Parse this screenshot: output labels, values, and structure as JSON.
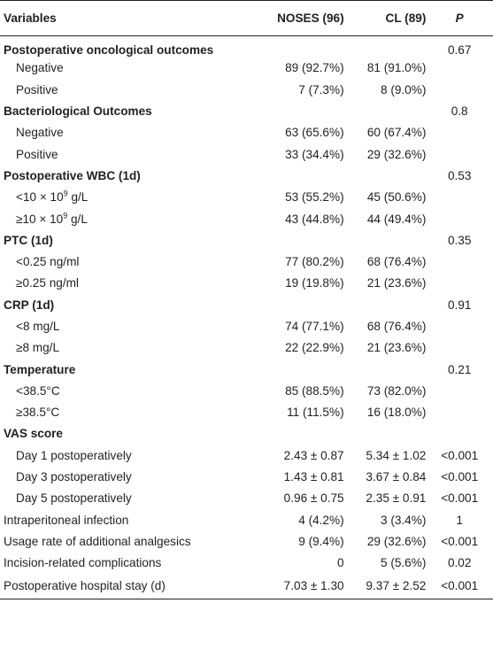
{
  "header": {
    "variables": "Variables",
    "noses": "NOSES (96)",
    "cl": "CL (89)",
    "p": "P"
  },
  "rows": [
    {
      "label": "Postoperative oncological outcomes",
      "noses": "",
      "cl": "",
      "p": "0.67",
      "group": true
    },
    {
      "label": "Negative",
      "noses": "89 (92.7%)",
      "cl": "81 (91.0%)",
      "p": "",
      "group": false
    },
    {
      "label": "Positive",
      "noses": "7 (7.3%)",
      "cl": "8 (9.0%)",
      "p": "",
      "group": false
    },
    {
      "label": "Bacteriological Outcomes",
      "noses": "",
      "cl": "",
      "p": "0.8",
      "group": true
    },
    {
      "label": "Negative",
      "noses": "63 (65.6%)",
      "cl": "60 (67.4%)",
      "p": "",
      "group": false
    },
    {
      "label": "Positive",
      "noses": "33 (34.4%)",
      "cl": "29 (32.6%)",
      "p": "",
      "group": false
    },
    {
      "label": "Postoperative WBC (1d)",
      "noses": "",
      "cl": "",
      "p": "0.53",
      "group": true
    },
    {
      "label_pre": "<10 × 10",
      "label_sup": "9",
      "label_post": " g/L",
      "noses": "53 (55.2%)",
      "cl": "45 (50.6%)",
      "p": "",
      "group": false
    },
    {
      "label_pre": "≥10 × 10",
      "label_sup": "9",
      "label_post": " g/L",
      "noses": "43 (44.8%)",
      "cl": "44 (49.4%)",
      "p": "",
      "group": false
    },
    {
      "label": "PTC (1d)",
      "noses": "",
      "cl": "",
      "p": "0.35",
      "group": true
    },
    {
      "label": "<0.25 ng/ml",
      "noses": "77 (80.2%)",
      "cl": "68 (76.4%)",
      "p": "",
      "group": false
    },
    {
      "label": "≥0.25 ng/ml",
      "noses": "19 (19.8%)",
      "cl": "21 (23.6%)",
      "p": "",
      "group": false
    },
    {
      "label": "CRP (1d)",
      "noses": "",
      "cl": "",
      "p": "0.91",
      "group": true
    },
    {
      "label": "<8 mg/L",
      "noses": "74 (77.1%)",
      "cl": "68 (76.4%)",
      "p": "",
      "group": false
    },
    {
      "label": "≥8 mg/L",
      "noses": "22 (22.9%)",
      "cl": "21 (23.6%)",
      "p": "",
      "group": false
    },
    {
      "label": "Temperature",
      "noses": "",
      "cl": "",
      "p": "0.21",
      "group": true
    },
    {
      "label": "<38.5°C",
      "noses": "85 (88.5%)",
      "cl": "73 (82.0%)",
      "p": "",
      "group": false
    },
    {
      "label": "≥38.5°C",
      "noses": "11 (11.5%)",
      "cl": "16 (18.0%)",
      "p": "",
      "group": false
    },
    {
      "label": "VAS score",
      "noses": "",
      "cl": "",
      "p": "",
      "group": true
    },
    {
      "label": "Day 1 postoperatively",
      "noses": "2.43 ± 0.87",
      "cl": "5.34 ± 1.02",
      "p": "<0.001",
      "group": false
    },
    {
      "label": "Day 3 postoperatively",
      "noses": "1.43 ± 0.81",
      "cl": "3.67 ± 0.84",
      "p": "<0.001",
      "group": false
    },
    {
      "label": "Day 5 postoperatively",
      "noses": "0.96 ± 0.75",
      "cl": "2.35 ± 0.91",
      "p": "<0.001",
      "group": false
    },
    {
      "label": "Intraperitoneal infection",
      "noses": "4 (4.2%)",
      "cl": "3 (3.4%)",
      "p": "1",
      "group": false,
      "flush": true
    },
    {
      "label": "Usage rate of additional analgesics",
      "noses": "9 (9.4%)",
      "cl": "29 (32.6%)",
      "p": "<0.001",
      "group": false,
      "flush": true
    },
    {
      "label": "Incision-related complications",
      "noses": "0",
      "cl": "5 (5.6%)",
      "p": "0.02",
      "group": false,
      "flush": true
    },
    {
      "label": "Postoperative hospital stay (d)",
      "noses": "7.03 ± 1.30",
      "cl": "9.37 ± 2.52",
      "p": "<0.001",
      "group": false,
      "flush": true
    }
  ]
}
